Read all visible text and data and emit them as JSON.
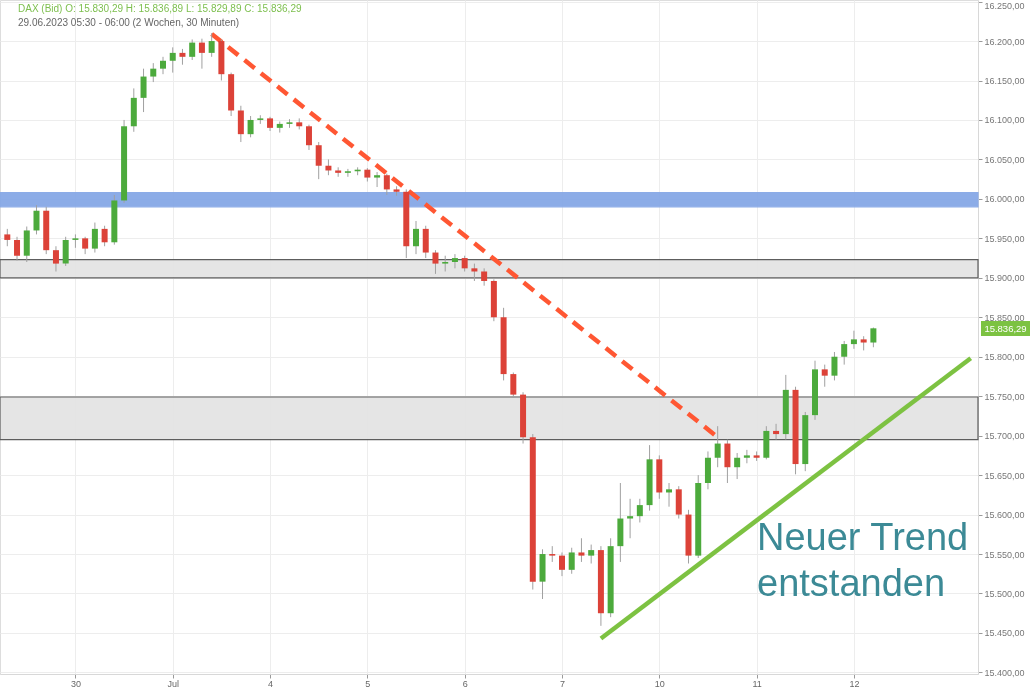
{
  "chart_data": {
    "type": "candlestick",
    "annotations": [
      "DAX (Bid)  O: 15.830,29  H: 15.836,89  L: 15.829,89  C: 15.836,29",
      "29.06.2023 05:30 - 06:00  (2 Wochen, 30 Minuten)",
      "Neuer Trend\nentstanden",
      "15.836,29"
    ],
    "categories": [
      null,
      null,
      null,
      null,
      null,
      null,
      null,
      "30",
      null,
      null,
      null,
      null,
      null,
      null,
      null,
      null,
      null,
      "Jul",
      null,
      null,
      null,
      null,
      null,
      null,
      null,
      null,
      null,
      "4",
      null,
      null,
      null,
      null,
      null,
      null,
      null,
      null,
      null,
      "5",
      null,
      null,
      null,
      null,
      null,
      null,
      null,
      null,
      null,
      "6",
      null,
      null,
      null,
      null,
      null,
      null,
      null,
      null,
      null,
      "7",
      null,
      null,
      null,
      null,
      null,
      null,
      null,
      null,
      null,
      "10",
      null,
      null,
      null,
      null,
      null,
      null,
      null,
      null,
      null,
      "11",
      null,
      null,
      null,
      null,
      null,
      null,
      null,
      null,
      null,
      "12",
      null,
      null,
      null,
      null,
      null,
      null,
      null,
      null,
      null,
      null,
      null,
      null
    ],
    "ohlc": [
      [
        15955,
        15962,
        15940,
        15948
      ],
      [
        15948,
        15952,
        15922,
        15928
      ],
      [
        15928,
        15965,
        15920,
        15960
      ],
      [
        15960,
        15992,
        15955,
        15985
      ],
      [
        15985,
        15990,
        15930,
        15935
      ],
      [
        15935,
        15940,
        15908,
        15918
      ],
      [
        15918,
        15952,
        15915,
        15948
      ],
      [
        15948,
        15955,
        15938,
        15950
      ],
      [
        15950,
        15952,
        15930,
        15937
      ],
      [
        15937,
        15970,
        15932,
        15962
      ],
      [
        15962,
        15966,
        15940,
        15945
      ],
      [
        15945,
        16005,
        15942,
        15998
      ],
      [
        15998,
        16100,
        15995,
        16092
      ],
      [
        16092,
        16140,
        16085,
        16128
      ],
      [
        16128,
        16165,
        16110,
        16155
      ],
      [
        16155,
        16172,
        16148,
        16165
      ],
      [
        16165,
        16180,
        16158,
        16175
      ],
      [
        16175,
        16192,
        16160,
        16185
      ],
      [
        16185,
        16190,
        16170,
        16180
      ],
      [
        16180,
        16202,
        16176,
        16198
      ],
      [
        16198,
        16203,
        16165,
        16185
      ],
      [
        16185,
        16210,
        16180,
        16200
      ],
      [
        16200,
        16202,
        16150,
        16158
      ],
      [
        16158,
        16160,
        16105,
        16112
      ],
      [
        16112,
        16118,
        16072,
        16082
      ],
      [
        16082,
        16105,
        16078,
        16100
      ],
      [
        16100,
        16106,
        16095,
        16102
      ],
      [
        16102,
        16104,
        16086,
        16090
      ],
      [
        16090,
        16098,
        16084,
        16095
      ],
      [
        16095,
        16101,
        16090,
        16097
      ],
      [
        16097,
        16102,
        16088,
        16092
      ],
      [
        16092,
        16094,
        16062,
        16068
      ],
      [
        16068,
        16072,
        16025,
        16042
      ],
      [
        16042,
        16050,
        16030,
        16036
      ],
      [
        16036,
        16040,
        16028,
        16033
      ],
      [
        16033,
        16038,
        16028,
        16035
      ],
      [
        16035,
        16040,
        16030,
        16037
      ],
      [
        16037,
        16039,
        16022,
        16027
      ],
      [
        16027,
        16034,
        16015,
        16030
      ],
      [
        16030,
        16032,
        16005,
        16012
      ],
      [
        16012,
        16016,
        16004,
        16009
      ],
      [
        16009,
        16012,
        15925,
        15940
      ],
      [
        15940,
        15972,
        15930,
        15962
      ],
      [
        15962,
        15966,
        15925,
        15932
      ],
      [
        15932,
        15935,
        15905,
        15918
      ],
      [
        15918,
        15928,
        15908,
        15920
      ],
      [
        15920,
        15930,
        15912,
        15925
      ],
      [
        15925,
        15928,
        15908,
        15912
      ],
      [
        15912,
        15918,
        15896,
        15908
      ],
      [
        15908,
        15912,
        15890,
        15896
      ],
      [
        15896,
        15898,
        15845,
        15850
      ],
      [
        15850,
        15862,
        15770,
        15778
      ],
      [
        15778,
        15780,
        15748,
        15752
      ],
      [
        15752,
        15755,
        15690,
        15698
      ],
      [
        15698,
        15702,
        15505,
        15515
      ],
      [
        15515,
        15556,
        15493,
        15550
      ],
      [
        15550,
        15560,
        15540,
        15548
      ],
      [
        15548,
        15552,
        15522,
        15530
      ],
      [
        15530,
        15558,
        15525,
        15552
      ],
      [
        15552,
        15570,
        15540,
        15548
      ],
      [
        15548,
        15562,
        15538,
        15555
      ],
      [
        15555,
        15560,
        15459,
        15475
      ],
      [
        15475,
        15570,
        15470,
        15560
      ],
      [
        15560,
        15640,
        15540,
        15595
      ],
      [
        15595,
        15620,
        15570,
        15598
      ],
      [
        15598,
        15620,
        15590,
        15612
      ],
      [
        15612,
        15688,
        15605,
        15670
      ],
      [
        15670,
        15675,
        15620,
        15628
      ],
      [
        15628,
        15640,
        15610,
        15632
      ],
      [
        15632,
        15636,
        15595,
        15600
      ],
      [
        15600,
        15606,
        15538,
        15548
      ],
      [
        15548,
        15650,
        15545,
        15640
      ],
      [
        15640,
        15680,
        15632,
        15672
      ],
      [
        15672,
        15712,
        15660,
        15690
      ],
      [
        15690,
        15695,
        15640,
        15660
      ],
      [
        15660,
        15678,
        15645,
        15672
      ],
      [
        15672,
        15682,
        15665,
        15675
      ],
      [
        15675,
        15680,
        15668,
        15672
      ],
      [
        15672,
        15712,
        15670,
        15706
      ],
      [
        15706,
        15715,
        15695,
        15702
      ],
      [
        15702,
        15777,
        15695,
        15758
      ],
      [
        15758,
        15762,
        15651,
        15664
      ],
      [
        15664,
        15730,
        15655,
        15726
      ],
      [
        15726,
        15795,
        15720,
        15784
      ],
      [
        15784,
        15790,
        15762,
        15776
      ],
      [
        15776,
        15806,
        15770,
        15800
      ],
      [
        15800,
        15820,
        15790,
        15816
      ],
      [
        15816,
        15833,
        15810,
        15822
      ],
      [
        15822,
        15826,
        15808,
        15818
      ],
      [
        15818,
        15837,
        15812,
        15836
      ],
      null,
      null,
      null,
      null,
      null,
      null,
      null,
      null,
      null,
      null
    ],
    "colors": [
      "#dc4238",
      "#dc4238",
      "#4caa3c",
      "#4caa3c",
      "#dc4238",
      "#dc4238",
      "#4caa3c",
      "#4caa3c",
      "#dc4238",
      "#4caa3c",
      "#dc4238",
      "#4caa3c",
      "#4caa3c",
      "#4caa3c",
      "#4caa3c",
      "#4caa3c",
      "#4caa3c",
      "#4caa3c",
      "#dc4238",
      "#4caa3c",
      "#dc4238",
      "#4caa3c",
      "#dc4238",
      "#dc4238",
      "#dc4238",
      "#4caa3c",
      "#4caa3c",
      "#dc4238",
      "#4caa3c",
      "#4caa3c",
      "#dc4238",
      "#dc4238",
      "#dc4238",
      "#dc4238",
      "#dc4238",
      "#4caa3c",
      "#4caa3c",
      "#dc4238",
      "#4caa3c",
      "#dc4238",
      "#dc4238",
      "#dc4238",
      "#4caa3c",
      "#dc4238",
      "#dc4238",
      "#4caa3c",
      "#4caa3c",
      "#dc4238",
      "#dc4238",
      "#dc4238",
      "#dc4238",
      "#dc4238",
      "#dc4238",
      "#dc4238",
      "#dc4238",
      "#4caa3c",
      "#dc4238",
      "#dc4238",
      "#4caa3c",
      "#dc4238",
      "#4caa3c",
      "#dc4238",
      "#4caa3c",
      "#4caa3c",
      "#4caa3c",
      "#4caa3c",
      "#4caa3c",
      "#dc4238",
      "#4caa3c",
      "#dc4238",
      "#dc4238",
      "#4caa3c",
      "#4caa3c",
      "#4caa3c",
      "#dc4238",
      "#4caa3c",
      "#4caa3c",
      "#dc4238",
      "#4caa3c",
      "#dc4238",
      "#4caa3c",
      "#dc4238",
      "#4caa3c",
      "#4caa3c",
      "#dc4238",
      "#4caa3c",
      "#4caa3c",
      "#4caa3c",
      "#dc4238",
      "#4caa3c",
      null,
      null,
      null,
      null,
      null,
      null,
      null,
      null,
      null,
      null
    ],
    "series": [
      {
        "type": "line",
        "color": "#ff5733",
        "line_style": "dashed",
        "values": [
          null,
          null,
          null,
          null,
          null,
          null,
          null,
          null,
          null,
          null,
          null,
          null,
          null,
          null,
          null,
          null,
          null,
          null,
          null,
          null,
          null,
          16209,
          null,
          null,
          null,
          null,
          null,
          null,
          null,
          null,
          null,
          null,
          null,
          null,
          null,
          null,
          null,
          null,
          null,
          null,
          null,
          null,
          null,
          null,
          null,
          null,
          null,
          null,
          null,
          null,
          null,
          null,
          null,
          null,
          null,
          null,
          null,
          null,
          null,
          null,
          null,
          null,
          null,
          null,
          null,
          null,
          null,
          null,
          null,
          null,
          null,
          null,
          null,
          15698,
          null,
          null,
          null,
          null,
          null,
          null,
          null,
          null,
          null,
          null,
          null,
          null,
          null,
          null,
          null,
          null,
          null,
          null,
          null,
          null,
          null,
          null,
          null,
          null,
          null,
          null
        ]
      },
      {
        "type": "line",
        "color": "#7dc242",
        "line_style": "solid",
        "values": [
          null,
          null,
          null,
          null,
          null,
          null,
          null,
          null,
          null,
          null,
          null,
          null,
          null,
          null,
          null,
          null,
          null,
          null,
          null,
          null,
          null,
          null,
          null,
          null,
          null,
          null,
          null,
          null,
          null,
          null,
          null,
          null,
          null,
          null,
          null,
          null,
          null,
          null,
          null,
          null,
          null,
          null,
          null,
          null,
          null,
          null,
          null,
          null,
          null,
          null,
          null,
          null,
          null,
          null,
          null,
          null,
          null,
          null,
          null,
          null,
          null,
          15443,
          null,
          null,
          null,
          null,
          null,
          null,
          null,
          null,
          null,
          null,
          null,
          null,
          null,
          null,
          null,
          null,
          null,
          null,
          null,
          null,
          null,
          null,
          null,
          null,
          null,
          null,
          null,
          null,
          null,
          null,
          null,
          null,
          null,
          null,
          null,
          null,
          null,
          15798
        ]
      }
    ],
    "bands": [
      {
        "axis": "y",
        "from": 15990,
        "to": 16008,
        "color": "#86a8e6"
      },
      {
        "axis": "y",
        "from": 15900,
        "to": 15923,
        "color": "#e4e4e4"
      },
      {
        "axis": "y",
        "from": 15695,
        "to": 15749,
        "color": "#e4e4e4"
      }
    ],
    "ylim": [
      15398,
      16252
    ],
    "yticks": [
      {
        "value": 15400,
        "label": "15.400,00"
      },
      {
        "value": 15450,
        "label": "15.450,00"
      },
      {
        "value": 15500,
        "label": "15.500,00"
      },
      {
        "value": 15550,
        "label": "15.550,00"
      },
      {
        "value": 15600,
        "label": "15.600,00"
      },
      {
        "value": 15650,
        "label": "15.650,00"
      },
      {
        "value": 15700,
        "label": "15.700,00"
      },
      {
        "value": 15750,
        "label": "15.750,00"
      },
      {
        "value": 15800,
        "label": "15.800,00"
      },
      {
        "value": 15850,
        "label": "15.850,00"
      },
      {
        "value": 15900,
        "label": "15.900,00"
      },
      {
        "value": 15950,
        "label": "15.950,00"
      },
      {
        "value": 16000,
        "label": "16.000,00"
      },
      {
        "value": 16050,
        "label": "16.050,00"
      },
      {
        "value": 16100,
        "label": "16.100,00"
      },
      {
        "value": 16150,
        "label": "16.150,00"
      },
      {
        "value": 16200,
        "label": "16.200,00"
      },
      {
        "value": 16250,
        "label": "16.250,00"
      }
    ],
    "grid": true,
    "marker": "none"
  }
}
